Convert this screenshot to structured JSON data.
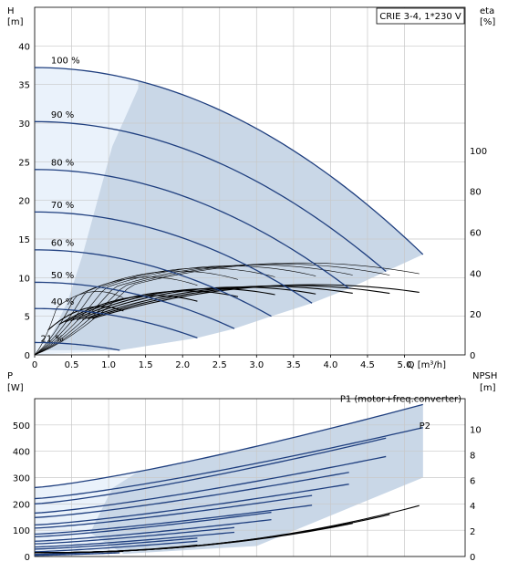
{
  "chart_data": [
    {
      "type": "line",
      "title": "CRIE 3-4, 1*230 V",
      "xlabel": "Q [m³/h]",
      "ylabel": "H\n[m]",
      "ylabel_right": "eta\n[%]",
      "xlim": [
        0,
        5.5
      ],
      "ylim": [
        0,
        45
      ],
      "ylim_right": [
        0,
        170
      ],
      "x_ticks": [
        0,
        0.5,
        1.0,
        1.5,
        2.0,
        2.5,
        3.0,
        3.5,
        4.0,
        4.5,
        5.0
      ],
      "x_tick_labels": [
        "0",
        "0.5",
        "1.0",
        "1.5",
        "2.0",
        "2.5",
        "3.0",
        "3.5",
        "4.0",
        "4.5",
        "5.0"
      ],
      "y_ticks": [
        0,
        5,
        10,
        15,
        20,
        25,
        30,
        35,
        40
      ],
      "y_ticks_right": [
        0,
        20,
        40,
        60,
        80,
        100
      ],
      "grid": true,
      "speed_curves": [
        {
          "label": "100 %",
          "H0": 37.2,
          "Qmax": 5.25,
          "Hend": 13.0
        },
        {
          "label": "90 %",
          "H0": 30.2,
          "Qmax": 4.75,
          "Hend": 10.8
        },
        {
          "label": "80 %",
          "H0": 24.0,
          "Qmax": 4.25,
          "Hend": 8.6
        },
        {
          "label": "70 %",
          "H0": 18.5,
          "Qmax": 3.75,
          "Hend": 6.7
        },
        {
          "label": "60 %",
          "H0": 13.6,
          "Qmax": 3.2,
          "Hend": 5.0
        },
        {
          "label": "50 %",
          "H0": 9.4,
          "Qmax": 2.7,
          "Hend": 3.4
        },
        {
          "label": "40 %",
          "H0": 6.0,
          "Qmax": 2.2,
          "Hend": 2.2
        },
        {
          "label": "21 %",
          "H0": 1.6,
          "Qmax": 1.15,
          "Hend": 0.6
        }
      ],
      "efficiency_curves": [
        {
          "Qend": 5.2,
          "peak": 45,
          "Qpeak": 3.6
        },
        {
          "Qend": 4.8,
          "peak": 44.5,
          "Qpeak": 3.3
        },
        {
          "Qend": 4.3,
          "peak": 44,
          "Qpeak": 3.0
        },
        {
          "Qend": 3.8,
          "peak": 43.5,
          "Qpeak": 2.65
        },
        {
          "Qend": 3.25,
          "peak": 42.5,
          "Qpeak": 2.3
        },
        {
          "Qend": 2.75,
          "peak": 41,
          "Qpeak": 1.95
        },
        {
          "Qend": 2.2,
          "peak": 38,
          "Qpeak": 1.55
        },
        {
          "Qend": 1.2,
          "peak": 31,
          "Qpeak": 0.85
        }
      ]
    },
    {
      "type": "line",
      "xlabel": "",
      "ylabel": "P\n[W]",
      "ylabel_right": "NPSH\n[m]",
      "xlim": [
        0,
        5.5
      ],
      "ylim": [
        0,
        580
      ],
      "ylim_right": [
        0,
        12
      ],
      "y_ticks": [
        0,
        100,
        200,
        300,
        400,
        500
      ],
      "y_ticks_right": [
        0,
        2,
        4,
        6,
        8,
        10
      ],
      "grid": true,
      "annotations": [
        "P1 (motor+freq.converter)",
        "P2"
      ],
      "p1_curves": [
        {
          "P0": 262,
          "Qend": 5.25,
          "Pend": 578
        },
        {
          "P0": 200,
          "Qend": 4.75,
          "Pend": 450
        },
        {
          "P0": 148,
          "Qend": 4.25,
          "Pend": 320
        },
        {
          "P0": 108,
          "Qend": 3.75,
          "Pend": 232
        },
        {
          "P0": 75,
          "Qend": 3.2,
          "Pend": 168
        },
        {
          "P0": 48,
          "Qend": 2.7,
          "Pend": 110
        },
        {
          "P0": 28,
          "Qend": 2.2,
          "Pend": 70
        },
        {
          "P0": 8,
          "Qend": 1.15,
          "Pend": 20
        }
      ],
      "p2_curves": [
        {
          "P0": 220,
          "Qend": 5.25,
          "Pend": 490
        },
        {
          "P0": 165,
          "Qend": 4.75,
          "Pend": 380
        },
        {
          "P0": 120,
          "Qend": 4.25,
          "Pend": 275
        },
        {
          "P0": 85,
          "Qend": 3.75,
          "Pend": 195
        },
        {
          "P0": 58,
          "Qend": 3.2,
          "Pend": 140
        },
        {
          "P0": 36,
          "Qend": 2.7,
          "Pend": 92
        },
        {
          "P0": 18,
          "Qend": 2.2,
          "Pend": 58
        },
        {
          "P0": 4,
          "Qend": 1.15,
          "Pend": 14
        }
      ],
      "npsh_curves": [
        {
          "Qend": 5.2,
          "Nend": 4.0
        },
        {
          "Qend": 4.8,
          "Nend": 3.3
        },
        {
          "Qend": 4.3,
          "Nend": 2.6
        },
        {
          "Qend": 3.8,
          "Nend": 2.1
        },
        {
          "Qend": 3.25,
          "Nend": 1.6
        },
        {
          "Qend": 2.75,
          "Nend": 1.2
        },
        {
          "Qend": 2.2,
          "Nend": 0.9
        },
        {
          "Qend": 1.2,
          "Nend": 0.4
        }
      ]
    }
  ]
}
